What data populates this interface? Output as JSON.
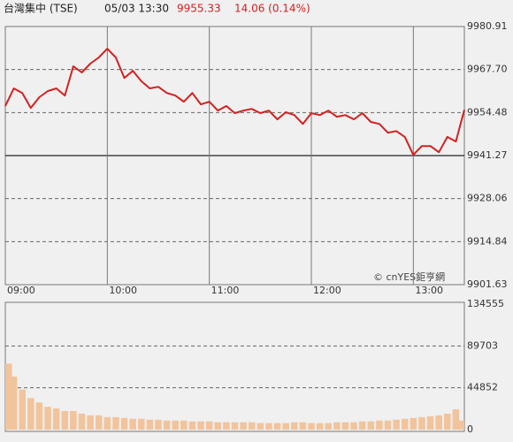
{
  "header": {
    "name": "台灣集中 (TSE)",
    "datetime": "05/03 13:30",
    "price": "9955.33",
    "change": "14.06 (0.14%)"
  },
  "watermark": "© cnYES鉅亨網",
  "chart_data": [
    {
      "type": "line",
      "color": "#d42020",
      "x": [
        "09:00",
        "09:05",
        "09:10",
        "09:15",
        "09:20",
        "09:25",
        "09:30",
        "09:35",
        "09:40",
        "09:45",
        "09:50",
        "09:55",
        "10:00",
        "10:05",
        "10:10",
        "10:15",
        "10:20",
        "10:25",
        "10:30",
        "10:35",
        "10:40",
        "10:45",
        "10:50",
        "10:55",
        "11:00",
        "11:05",
        "11:10",
        "11:15",
        "11:20",
        "11:25",
        "11:30",
        "11:35",
        "11:40",
        "11:45",
        "11:50",
        "11:55",
        "12:00",
        "12:05",
        "12:10",
        "12:15",
        "12:20",
        "12:25",
        "12:30",
        "12:35",
        "12:40",
        "12:45",
        "12:50",
        "12:55",
        "13:00",
        "13:05",
        "13:10",
        "13:15",
        "13:20",
        "13:25",
        "13:30"
      ],
      "values": [
        9956.5,
        9961.9,
        9960.5,
        9955.9,
        9959.2,
        9961.1,
        9961.9,
        9959.7,
        9968.7,
        9966.8,
        9969.5,
        9971.4,
        9974.1,
        9971.4,
        9965.1,
        9967.3,
        9964.1,
        9961.9,
        9962.4,
        9960.5,
        9959.7,
        9957.8,
        9960.5,
        9957.0,
        9957.8,
        9955.1,
        9956.5,
        9954.3,
        9955.1,
        9955.6,
        9954.3,
        9955.1,
        9952.4,
        9954.6,
        9953.7,
        9951.0,
        9954.3,
        9953.7,
        9955.1,
        9953.2,
        9953.7,
        9952.4,
        9954.3,
        9951.6,
        9951.0,
        9948.3,
        9948.8,
        9947.0,
        9941.5,
        9944.2,
        9944.2,
        9942.3,
        9947.0,
        9945.6,
        9955.33
      ],
      "xlim": [
        "09:00",
        "13:30"
      ],
      "xticks": [
        "09:00",
        "10:00",
        "11:00",
        "12:00",
        "13:00"
      ],
      "ylim": [
        9901.63,
        9980.91
      ],
      "yticks": [
        9901.63,
        9914.84,
        9928.06,
        9941.27,
        9954.48,
        {
          "value": 9967.7,
          "label": "9967.70"
        },
        9980.91
      ],
      "reference": 9941.27
    },
    {
      "type": "bar",
      "color": "#f2c49c",
      "x": [
        "09:00",
        "09:05",
        "09:10",
        "09:15",
        "09:20",
        "09:25",
        "09:30",
        "09:35",
        "09:40",
        "09:45",
        "09:50",
        "09:55",
        "10:00",
        "10:05",
        "10:10",
        "10:15",
        "10:20",
        "10:25",
        "10:30",
        "10:35",
        "10:40",
        "10:45",
        "10:50",
        "10:55",
        "11:00",
        "11:05",
        "11:10",
        "11:15",
        "11:20",
        "11:25",
        "11:30",
        "11:35",
        "11:40",
        "11:45",
        "11:50",
        "11:55",
        "12:00",
        "12:05",
        "12:10",
        "12:15",
        "12:20",
        "12:25",
        "12:30",
        "12:35",
        "12:40",
        "12:45",
        "12:50",
        "12:55",
        "13:00",
        "13:05",
        "13:10",
        "13:15",
        "13:20",
        "13:25",
        "13:30"
      ],
      "values": [
        70800,
        56900,
        43000,
        33800,
        29100,
        24500,
        22700,
        19900,
        19900,
        17100,
        15300,
        15300,
        13400,
        13400,
        12500,
        11600,
        11600,
        10600,
        10600,
        9700,
        9700,
        9700,
        8800,
        8800,
        8800,
        7900,
        7900,
        7900,
        7900,
        7900,
        7000,
        7000,
        7000,
        7000,
        7900,
        7900,
        7000,
        7000,
        7000,
        7900,
        7900,
        7900,
        8800,
        8800,
        9700,
        9700,
        10600,
        11600,
        12500,
        13400,
        14300,
        15300,
        17100,
        21700,
        9700
      ],
      "xlim": [
        "09:00",
        "13:30"
      ],
      "ylim": [
        0,
        134555
      ],
      "yticks": [
        0,
        44852,
        89703,
        134555
      ]
    }
  ]
}
